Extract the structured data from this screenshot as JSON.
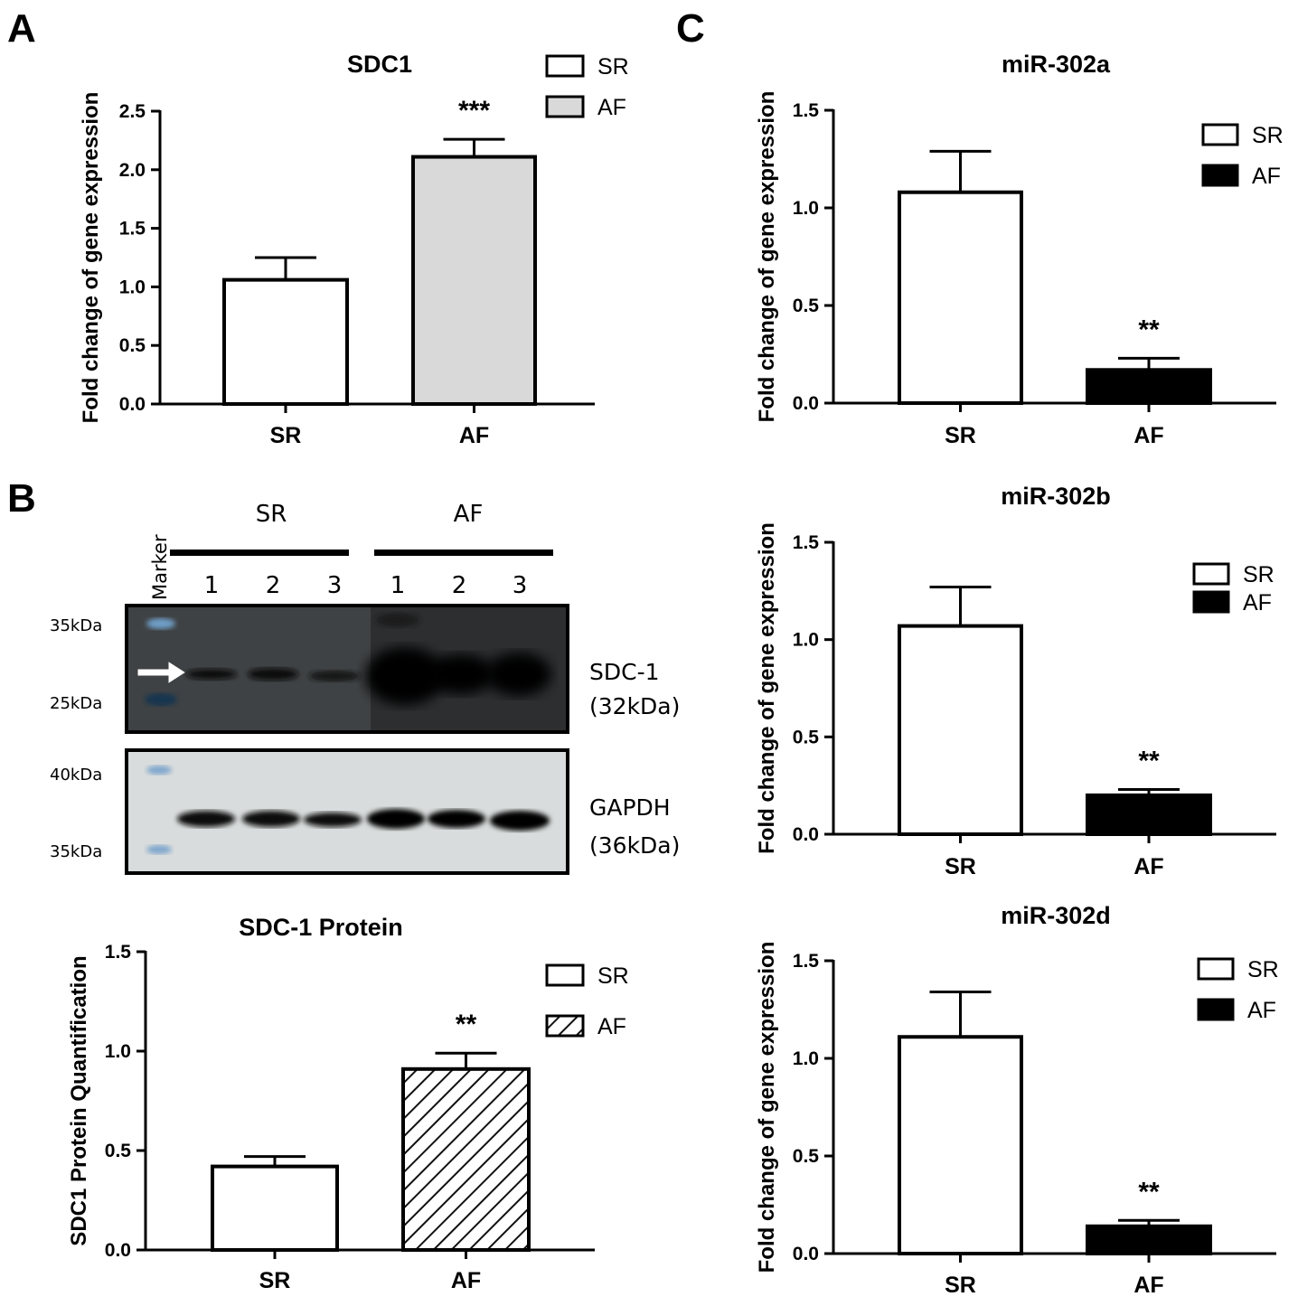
{
  "panels": {
    "a": "A",
    "b": "B",
    "c": "C"
  },
  "chart_data": [
    {
      "id": "A",
      "type": "bar",
      "title": "SDC1",
      "ylabel": "Fold change of gene expression",
      "categories": [
        "SR",
        "AF"
      ],
      "values": [
        1.06,
        2.11
      ],
      "errors": [
        0.19,
        0.15
      ],
      "ylim": [
        0,
        2.5
      ],
      "yticks": [
        "0.0",
        "0.5",
        "1.0",
        "1.5",
        "2.0",
        "2.5"
      ],
      "fills": [
        "#ffffff",
        "#d9d9d9"
      ],
      "legend": [
        {
          "label": "SR",
          "fill": "#ffffff"
        },
        {
          "label": "AF",
          "fill": "#d9d9d9"
        }
      ],
      "legend_position": "top-right",
      "significance": [
        {
          "category": "AF",
          "label": "***"
        }
      ]
    },
    {
      "id": "B-quant",
      "type": "bar",
      "title": "SDC-1 Protein",
      "ylabel": "SDC1 Protein Quantification",
      "categories": [
        "SR",
        "AF"
      ],
      "values": [
        0.42,
        0.91
      ],
      "errors": [
        0.05,
        0.08
      ],
      "ylim": [
        0,
        1.5
      ],
      "yticks": [
        "0.0",
        "0.5",
        "1.0",
        "1.5"
      ],
      "fills": [
        "#ffffff",
        "hatch"
      ],
      "legend": [
        {
          "label": "SR",
          "fill": "#ffffff"
        },
        {
          "label": "AF",
          "fill": "hatch"
        }
      ],
      "legend_position": "top-right",
      "significance": [
        {
          "category": "AF",
          "label": "**"
        }
      ]
    },
    {
      "id": "C-302a",
      "type": "bar",
      "title": "miR-302a",
      "ylabel": "Fold change of gene expression",
      "categories": [
        "SR",
        "AF"
      ],
      "values": [
        1.08,
        0.17
      ],
      "errors": [
        0.21,
        0.06
      ],
      "ylim": [
        0,
        1.5
      ],
      "yticks": [
        "0.0",
        "0.5",
        "1.0",
        "1.5"
      ],
      "fills": [
        "#ffffff",
        "#000000"
      ],
      "legend": [
        {
          "label": "SR",
          "fill": "#ffffff"
        },
        {
          "label": "AF",
          "fill": "#000000"
        }
      ],
      "legend_position": "top-right",
      "significance": [
        {
          "category": "AF",
          "label": "**"
        }
      ]
    },
    {
      "id": "C-302b",
      "type": "bar",
      "title": "miR-302b",
      "ylabel": "Fold change of gene expression",
      "categories": [
        "SR",
        "AF"
      ],
      "values": [
        1.07,
        0.2
      ],
      "errors": [
        0.2,
        0.03
      ],
      "ylim": [
        0,
        1.5
      ],
      "yticks": [
        "0.0",
        "0.5",
        "1.0",
        "1.5"
      ],
      "fills": [
        "#ffffff",
        "#000000"
      ],
      "legend": [
        {
          "label": "SR",
          "fill": "#ffffff"
        },
        {
          "label": "AF",
          "fill": "#000000"
        }
      ],
      "legend_position": "top-right",
      "significance": [
        {
          "category": "AF",
          "label": "**"
        }
      ]
    },
    {
      "id": "C-302d",
      "type": "bar",
      "title": "miR-302d",
      "ylabel": "Fold change of gene expression",
      "categories": [
        "SR",
        "AF"
      ],
      "values": [
        1.11,
        0.14
      ],
      "errors": [
        0.23,
        0.03
      ],
      "ylim": [
        0,
        1.5
      ],
      "yticks": [
        "0.0",
        "0.5",
        "1.0",
        "1.5"
      ],
      "fills": [
        "#ffffff",
        "#000000"
      ],
      "legend": [
        {
          "label": "SR",
          "fill": "#ffffff"
        },
        {
          "label": "AF",
          "fill": "#000000"
        }
      ],
      "legend_position": "top-right",
      "significance": [
        {
          "category": "AF",
          "label": "**"
        }
      ]
    }
  ],
  "blot": {
    "groups": [
      "SR",
      "AF"
    ],
    "marker_label": "Marker",
    "lanes": [
      "1",
      "2",
      "3",
      "1",
      "2",
      "3"
    ],
    "sdc1": {
      "name": "SDC-1",
      "size": "(32kDa)",
      "marker_top": "35kDa",
      "marker_bottom": "25kDa"
    },
    "gapdh": {
      "name": "GAPDH",
      "size": "(36kDa)",
      "marker_top": "40kDa",
      "marker_bottom": "35kDa"
    }
  }
}
